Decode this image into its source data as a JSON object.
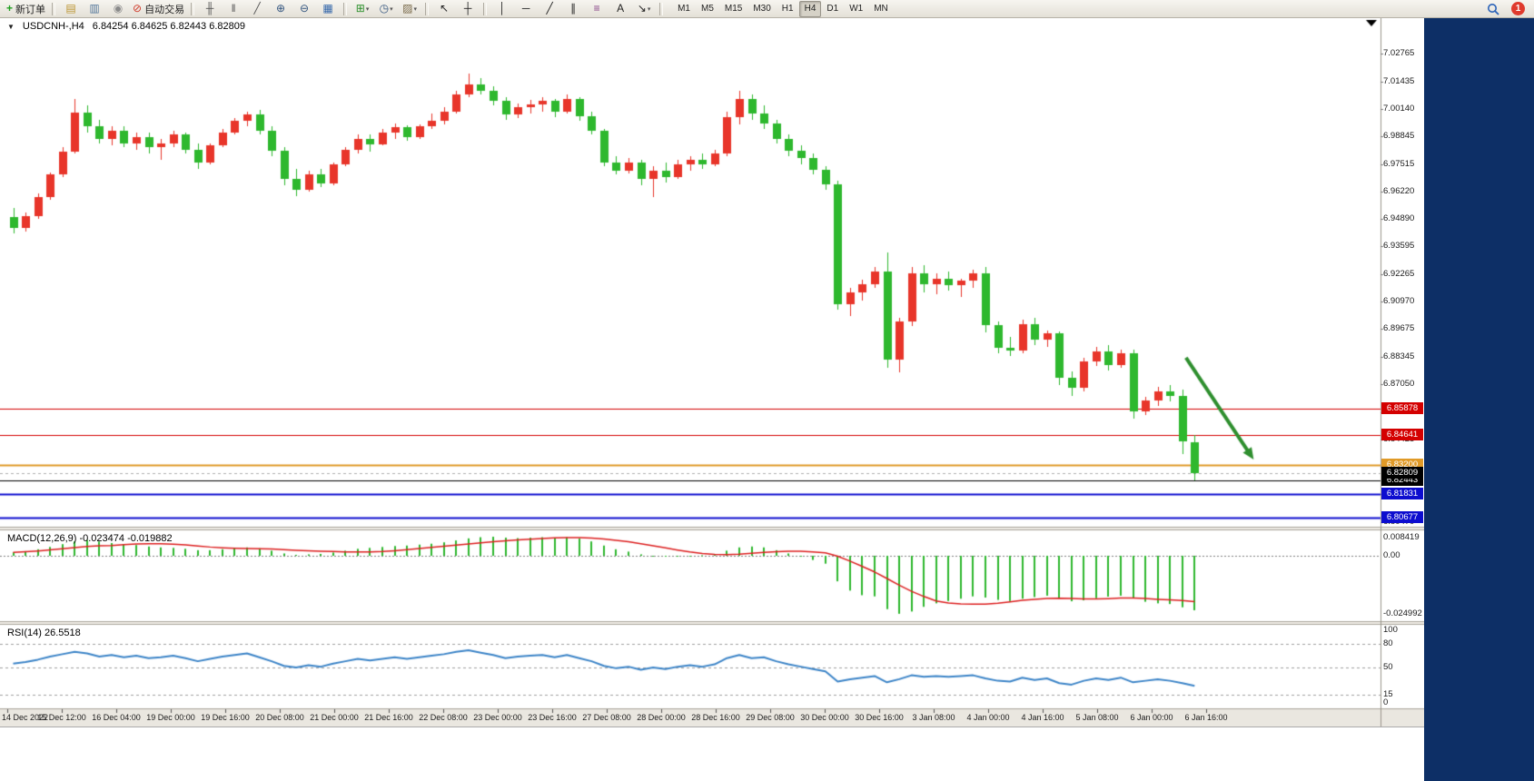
{
  "toolbar": {
    "items": [
      {
        "name": "new-order-button",
        "glyph": "+",
        "color": "#1f9e1f",
        "text": "新订单"
      },
      {
        "name": "separator"
      },
      {
        "name": "charts-profile-button",
        "glyph": "▤",
        "color": "#bb9430"
      },
      {
        "name": "market-watch-button",
        "glyph": "▥",
        "color": "#55789b"
      },
      {
        "name": "signals-button",
        "glyph": "◉",
        "color": "#8a8a8a"
      },
      {
        "name": "autotrade-button",
        "glyph": "⊘",
        "color": "#d03a2a",
        "text": "自动交易"
      },
      {
        "name": "separator"
      },
      {
        "name": "bar-chart-button",
        "glyph": "╫",
        "color": "#555555"
      },
      {
        "name": "candlestick-chart-button",
        "glyph": "‖",
        "color": "#555555"
      },
      {
        "name": "line-chart-button",
        "glyph": "╱",
        "color": "#555555"
      },
      {
        "name": "zoom-in-button",
        "glyph": "⊕",
        "color": "#33557f"
      },
      {
        "name": "zoom-out-button",
        "glyph": "⊖",
        "color": "#33557f"
      },
      {
        "name": "tile-windows-button",
        "glyph": "▦",
        "color": "#3366aa"
      },
      {
        "name": "separator"
      },
      {
        "name": "indicators-button",
        "glyph": "⊞",
        "color": "#2a8f2a",
        "caret": true
      },
      {
        "name": "periods-button",
        "glyph": "◷",
        "color": "#33557f",
        "caret": true
      },
      {
        "name": "templates-button",
        "glyph": "▨",
        "color": "#7a6a4a",
        "caret": true
      },
      {
        "name": "separator"
      },
      {
        "name": "cursor-button",
        "glyph": "↖",
        "color": "#222222"
      },
      {
        "name": "crosshair-button",
        "glyph": "┼",
        "color": "#222222"
      },
      {
        "name": "separator"
      },
      {
        "name": "vertical-line-button",
        "glyph": "│",
        "color": "#222222"
      },
      {
        "name": "horizontal-line-button",
        "glyph": "─",
        "color": "#222222"
      },
      {
        "name": "trendline-button",
        "glyph": "╱",
        "color": "#222222"
      },
      {
        "name": "equidistant-channel-button",
        "glyph": "∥",
        "color": "#222222"
      },
      {
        "name": "fibonacci-button",
        "glyph": "≡",
        "color": "#884488"
      },
      {
        "name": "text-button",
        "glyph": "A",
        "color": "#222222"
      },
      {
        "name": "arrows-button",
        "glyph": "↘",
        "color": "#222222",
        "caret": true
      },
      {
        "name": "separator"
      }
    ],
    "timeframes": [
      "M1",
      "M5",
      "M15",
      "M30",
      "H1",
      "H4",
      "D1",
      "W1",
      "MN"
    ],
    "active_timeframe": "H4",
    "notification_count": "1"
  },
  "chart": {
    "title": "USDCNH-,H4",
    "ohlc_text": "6.84254 6.84625 6.82443 6.82809"
  },
  "macd": {
    "label": "MACD(12,26,9) -0.023474 -0.019882",
    "axis_labels": [
      "0.008419",
      "0.00",
      "-0.024992"
    ]
  },
  "rsi": {
    "label": "RSI(14) 26.5518",
    "axis_labels": [
      "100",
      "80",
      "50",
      "15",
      "0"
    ],
    "levels": [
      80,
      50,
      15
    ]
  },
  "chart_data": {
    "type": "candlestick",
    "symbol": "USDCNH-",
    "period": "H4",
    "current_bar": {
      "open": 6.84254,
      "high": 6.84625,
      "low": 6.82443,
      "close": 6.82809
    },
    "colors": {
      "up": "#e8352a",
      "down": "#2eb82e",
      "macd_hist": "#2eb82e",
      "macd_signal": "#dd2020",
      "rsi_line": "#3d85c8",
      "arrow": "#2f8f2f"
    },
    "price_axis_labels": [
      "7.02765",
      "7.01435",
      "7.00140",
      "6.98845",
      "6.97515",
      "6.96220",
      "6.94890",
      "6.93595",
      "6.92265",
      "6.90970",
      "6.89675",
      "6.88345",
      "6.87050",
      "6.85720",
      "6.84425",
      "6.83095",
      "6.81800",
      "6.80470"
    ],
    "candles": [
      [
        6.95,
        6.954,
        6.942,
        6.9445
      ],
      [
        6.9445,
        6.952,
        6.943,
        6.9505
      ],
      [
        6.9505,
        6.961,
        6.949,
        6.9595
      ],
      [
        6.9595,
        6.971,
        6.958,
        6.97
      ],
      [
        6.97,
        6.983,
        6.969,
        6.981
      ],
      [
        6.981,
        7.006,
        6.98,
        6.9995
      ],
      [
        6.9995,
        7.003,
        6.99,
        6.993
      ],
      [
        6.993,
        6.996,
        6.985,
        6.987
      ],
      [
        6.987,
        6.993,
        6.984,
        6.991
      ],
      [
        6.991,
        6.993,
        6.983,
        6.985
      ],
      [
        6.985,
        6.99,
        6.982,
        6.988
      ],
      [
        6.988,
        6.99,
        6.98,
        6.983
      ],
      [
        6.983,
        6.987,
        6.977,
        6.985
      ],
      [
        6.985,
        6.991,
        6.983,
        6.989
      ],
      [
        6.989,
        6.99,
        6.98,
        6.982
      ],
      [
        6.982,
        6.985,
        6.973,
        6.976
      ],
      [
        6.976,
        6.985,
        6.975,
        6.984
      ],
      [
        6.984,
        6.992,
        6.983,
        6.99
      ],
      [
        6.99,
        6.997,
        6.989,
        6.9955
      ],
      [
        6.9955,
        7.0,
        6.993,
        6.9985
      ],
      [
        6.9985,
        7.001,
        6.989,
        6.991
      ],
      [
        6.991,
        6.993,
        6.979,
        6.9815
      ],
      [
        6.9815,
        6.983,
        6.965,
        6.968
      ],
      [
        6.968,
        6.973,
        6.96,
        6.963
      ],
      [
        6.963,
        6.972,
        6.962,
        6.97
      ],
      [
        6.97,
        6.973,
        6.964,
        6.966
      ],
      [
        6.966,
        6.976,
        6.965,
        6.975
      ],
      [
        6.975,
        6.983,
        6.974,
        6.982
      ],
      [
        6.982,
        6.989,
        6.98,
        6.987
      ],
      [
        6.987,
        6.989,
        6.981,
        6.9845
      ],
      [
        6.9845,
        6.992,
        6.984,
        6.99
      ],
      [
        6.99,
        6.9945,
        6.987,
        6.9925
      ],
      [
        6.9925,
        6.9935,
        6.986,
        6.988
      ],
      [
        6.988,
        6.994,
        6.987,
        6.993
      ],
      [
        6.993,
        6.999,
        6.992,
        6.9955
      ],
      [
        6.9955,
        7.002,
        6.994,
        7.0
      ],
      [
        7.0,
        7.01,
        6.999,
        7.008
      ],
      [
        7.008,
        7.018,
        7.007,
        7.013
      ],
      [
        7.013,
        7.016,
        7.008,
        7.01
      ],
      [
        7.01,
        7.012,
        7.003,
        7.005
      ],
      [
        7.005,
        7.007,
        6.996,
        6.9985
      ],
      [
        6.9985,
        7.004,
        6.997,
        7.002
      ],
      [
        7.002,
        7.0055,
        6.999,
        7.0035
      ],
      [
        7.0035,
        7.007,
        7.0,
        7.005
      ],
      [
        7.005,
        7.006,
        6.9975,
        7.0
      ],
      [
        7.0,
        7.008,
        6.999,
        7.006
      ],
      [
        7.006,
        7.007,
        6.9955,
        6.998
      ],
      [
        6.998,
        7.0,
        6.989,
        6.991
      ],
      [
        6.991,
        6.992,
        6.974,
        6.976
      ],
      [
        6.976,
        6.979,
        6.97,
        6.972
      ],
      [
        6.972,
        6.978,
        6.9705,
        6.976
      ],
      [
        6.976,
        6.977,
        6.965,
        6.968
      ],
      [
        6.968,
        6.974,
        6.9595,
        6.972
      ],
      [
        6.972,
        6.976,
        6.9665,
        6.969
      ],
      [
        6.969,
        6.977,
        6.968,
        6.975
      ],
      [
        6.975,
        6.979,
        6.972,
        6.977
      ],
      [
        6.977,
        6.98,
        6.973,
        6.975
      ],
      [
        6.975,
        6.982,
        6.974,
        6.98
      ],
      [
        6.98,
        7.0,
        6.979,
        6.9975
      ],
      [
        6.9975,
        7.01,
        6.994,
        7.006
      ],
      [
        7.006,
        7.008,
        6.996,
        6.999
      ],
      [
        6.999,
        7.003,
        6.992,
        6.9945
      ],
      [
        6.9945,
        6.996,
        6.985,
        6.987
      ],
      [
        6.987,
        6.989,
        6.979,
        6.9815
      ],
      [
        6.9815,
        6.984,
        6.975,
        6.978
      ],
      [
        6.978,
        6.98,
        6.97,
        6.9725
      ],
      [
        6.9725,
        6.974,
        6.963,
        6.9655
      ],
      [
        6.9655,
        6.967,
        6.906,
        6.9085
      ],
      [
        6.9085,
        6.916,
        6.903,
        6.914
      ],
      [
        6.914,
        6.92,
        6.91,
        6.918
      ],
      [
        6.918,
        6.926,
        6.916,
        6.924
      ],
      [
        6.924,
        6.933,
        6.878,
        6.882
      ],
      [
        6.882,
        6.902,
        6.876,
        6.9
      ],
      [
        6.9,
        6.926,
        6.898,
        6.923
      ],
      [
        6.923,
        6.927,
        6.914,
        6.918
      ],
      [
        6.918,
        6.923,
        6.913,
        6.9205
      ],
      [
        6.9205,
        6.924,
        6.915,
        6.9175
      ],
      [
        6.9175,
        6.9205,
        6.912,
        6.9195
      ],
      [
        6.9195,
        6.925,
        6.916,
        6.923
      ],
      [
        6.923,
        6.926,
        6.895,
        6.8985
      ],
      [
        6.8985,
        6.9,
        6.885,
        6.8875
      ],
      [
        6.8875,
        6.893,
        6.884,
        6.8865
      ],
      [
        6.8865,
        6.901,
        6.885,
        6.899
      ],
      [
        6.899,
        6.902,
        6.889,
        6.8915
      ],
      [
        6.8915,
        6.896,
        6.888,
        6.8945
      ],
      [
        6.8945,
        6.8955,
        6.87,
        6.8735
      ],
      [
        6.8735,
        6.8765,
        6.865,
        6.8685
      ],
      [
        6.8685,
        6.883,
        6.867,
        6.881
      ],
      [
        6.881,
        6.888,
        6.879,
        6.886
      ],
      [
        6.886,
        6.889,
        6.877,
        6.8795
      ],
      [
        6.8795,
        6.887,
        6.878,
        6.885
      ],
      [
        6.885,
        6.887,
        6.854,
        6.8575
      ],
      [
        6.8575,
        6.8645,
        6.8555,
        6.8625
      ],
      [
        6.8625,
        6.869,
        6.86,
        6.867
      ],
      [
        6.867,
        6.87,
        6.862,
        6.865
      ],
      [
        6.865,
        6.868,
        6.837,
        6.843
      ],
      [
        6.84254,
        6.84625,
        6.82443,
        6.82809
      ]
    ],
    "hlines": [
      {
        "price": 6.85878,
        "label": "6.85878",
        "color": "#d40000",
        "width": 1
      },
      {
        "price": 6.84641,
        "label": "6.84641",
        "color": "#d40000",
        "width": 1
      },
      {
        "price": 6.832,
        "label": "6.83200",
        "color": "#e09a28",
        "width": 2
      },
      {
        "price": 6.82443,
        "label": "6.82443",
        "color": "#000000",
        "width": 1
      },
      {
        "price": 6.81831,
        "label": "6.81831",
        "color": "#0d0dcf",
        "width": 2
      },
      {
        "price": 6.80677,
        "label": "6.80677",
        "color": "#0d0dcf",
        "width": 2
      }
    ],
    "current_price": {
      "label": "6.82809",
      "price": 6.82809,
      "color": "#000000"
    },
    "arrow": {
      "from_bar": 95.3,
      "from_price": 6.883,
      "to_bar": 100.8,
      "to_price": 6.8345
    },
    "macd_values": [
      0.0015,
      0.002,
      0.0028,
      0.0038,
      0.005,
      0.0062,
      0.0068,
      0.0062,
      0.0055,
      0.005,
      0.0046,
      0.004,
      0.0036,
      0.0034,
      0.003,
      0.0024,
      0.0024,
      0.0028,
      0.0032,
      0.0036,
      0.0032,
      0.0022,
      0.001,
      0.0004,
      0.0006,
      0.0008,
      0.0014,
      0.0022,
      0.003,
      0.0034,
      0.0038,
      0.0042,
      0.0044,
      0.0048,
      0.0052,
      0.0058,
      0.0066,
      0.0075,
      0.008,
      0.0082,
      0.0078,
      0.0076,
      0.0078,
      0.008,
      0.0078,
      0.008,
      0.0074,
      0.0062,
      0.0044,
      0.0028,
      0.0018,
      0.0006,
      0.0,
      -0.0004,
      -0.0004,
      0.0,
      0.0002,
      0.0006,
      0.0022,
      0.0036,
      0.004,
      0.0036,
      0.0024,
      0.001,
      -0.0004,
      -0.0018,
      -0.0034,
      -0.011,
      -0.015,
      -0.017,
      -0.0175,
      -0.023,
      -0.025,
      -0.024,
      -0.022,
      -0.0205,
      -0.0195,
      -0.0185,
      -0.0175,
      -0.018,
      -0.019,
      -0.0195,
      -0.0185,
      -0.0178,
      -0.0172,
      -0.0185,
      -0.0196,
      -0.0192,
      -0.0183,
      -0.0176,
      -0.0172,
      -0.0182,
      -0.0198,
      -0.0205,
      -0.0208,
      -0.0222,
      -0.023474
    ],
    "rsi_values": [
      55,
      57,
      60,
      64,
      67,
      70,
      68,
      64,
      66,
      63,
      65,
      62,
      63,
      65,
      62,
      58,
      61,
      64,
      66,
      68,
      63,
      58,
      52,
      50,
      53,
      51,
      55,
      58,
      61,
      59,
      61,
      63,
      61,
      63,
      65,
      67,
      70,
      72,
      69,
      66,
      62,
      64,
      65,
      66,
      63,
      66,
      62,
      58,
      52,
      49,
      51,
      47,
      50,
      48,
      51,
      53,
      51,
      54,
      62,
      66,
      62,
      63,
      58,
      54,
      51,
      48,
      45,
      32,
      35,
      37,
      39,
      31,
      35,
      40,
      38,
      39,
      38,
      39,
      40,
      36,
      33,
      32,
      37,
      34,
      36,
      30,
      28,
      33,
      36,
      34,
      37,
      31,
      33,
      35,
      33,
      30,
      26.5518
    ],
    "time_labels": [
      "14 Dec 2022",
      "15 Dec 12:00",
      "16 Dec 04:00",
      "19 Dec 00:00",
      "19 Dec 16:00",
      "20 Dec 08:00",
      "21 Dec 00:00",
      "21 Dec 16:00",
      "22 Dec 08:00",
      "23 Dec 00:00",
      "23 Dec 16:00",
      "27 Dec 08:00",
      "28 Dec 00:00",
      "28 Dec 16:00",
      "29 Dec 08:00",
      "30 Dec 00:00",
      "30 Dec 16:00",
      "3 Jan 08:00",
      "4 Jan 00:00",
      "4 Jan 16:00",
      "5 Jan 08:00",
      "6 Jan 00:00",
      "6 Jan 16:00"
    ]
  }
}
